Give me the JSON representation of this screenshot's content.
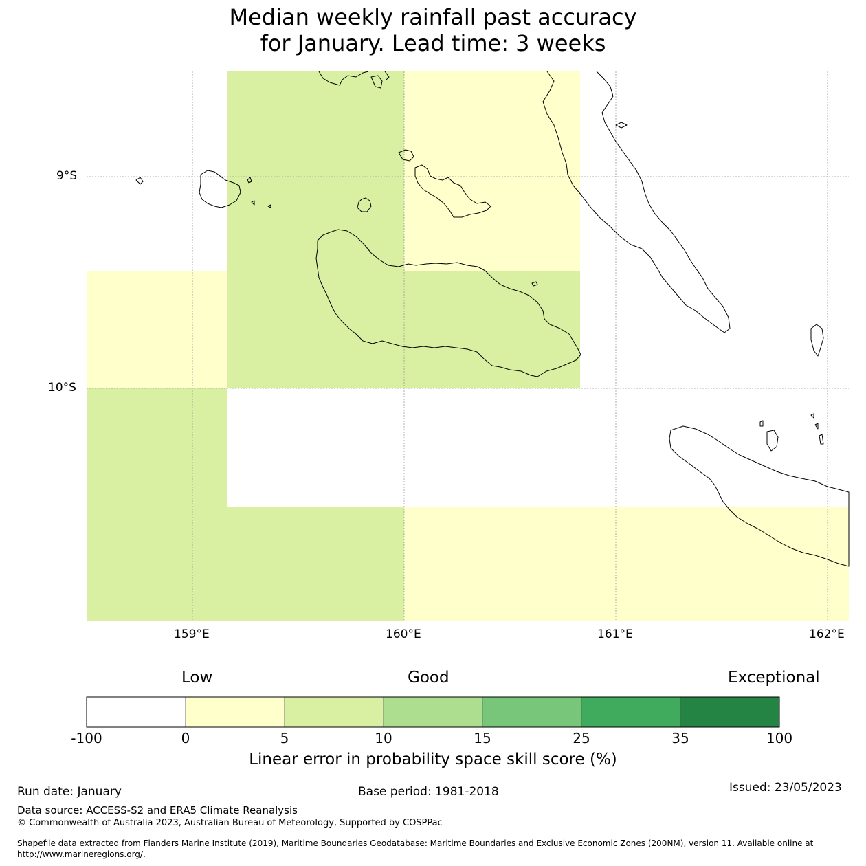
{
  "title": {
    "line1": "Median weekly rainfall past accuracy",
    "line2": "for January. Lead time: 3 weeks"
  },
  "map": {
    "lat_labels": [
      "9°S",
      "10°S"
    ],
    "lon_labels": [
      "159°E",
      "160°E",
      "161°E",
      "162°E"
    ],
    "extent": {
      "lon_min": 158.5,
      "lon_max": 162.1,
      "lat_min": -11.1,
      "lat_max": -8.5
    },
    "cells": [
      {
        "lon0": 159.166,
        "lon1": 160.0,
        "lat0": -8.5,
        "lat1": -9.45,
        "category": "5-10"
      },
      {
        "lon0": 160.0,
        "lon1": 160.833,
        "lat0": -8.5,
        "lat1": -9.45,
        "category": "0-5"
      },
      {
        "lon0": 158.5,
        "lon1": 159.166,
        "lat0": -9.45,
        "lat1": -10.0,
        "category": "0-5"
      },
      {
        "lon0": 159.166,
        "lon1": 160.833,
        "lat0": -9.45,
        "lat1": -10.0,
        "category": "5-10"
      },
      {
        "lon0": 158.5,
        "lon1": 159.166,
        "lat0": -10.0,
        "lat1": -11.1,
        "category": "5-10"
      },
      {
        "lon0": 159.166,
        "lon1": 160.0,
        "lat0": -10.56,
        "lat1": -11.1,
        "category": "5-10"
      },
      {
        "lon0": 160.0,
        "lon1": 162.1,
        "lat0": -10.56,
        "lat1": -11.1,
        "category": "0-5"
      }
    ]
  },
  "colorbar": {
    "words": {
      "low": "Low",
      "good": "Good",
      "exceptional": "Exceptional"
    },
    "ticks": [
      "-100",
      "0",
      "5",
      "10",
      "15",
      "25",
      "35",
      "100"
    ],
    "colors": [
      "#ffffff",
      "#ffffcc",
      "#d9f0a3",
      "#addd8e",
      "#78c679",
      "#41ab5d",
      "#238443"
    ],
    "label": "Linear error in probability space skill score (%)"
  },
  "colors": {
    "category_0_5": "#ffffcc",
    "category_5_10": "#d9f0a3",
    "coast": "#000000",
    "grid": "#999999"
  },
  "footer": {
    "run_date": "Run date: January",
    "base_period": "Base period: 1981-2018",
    "issued": "Issued: 23/05/2023",
    "data_source": "Data source: ACCESS-S2 and ERA5 Climate Reanalysis",
    "copyright": "© Commonwealth of Australia 2023, Australian Bureau of Meteorology, Supported by COSPPac",
    "shapefile_1": "Shapefile data extracted from Flanders Marine Institute (2019), Maritime Boundaries Geodatabase: Maritime Boundaries and Exclusive Economic Zones (200NM), version 11. Available online at",
    "shapefile_2": "http://www.marineregions.org/."
  }
}
